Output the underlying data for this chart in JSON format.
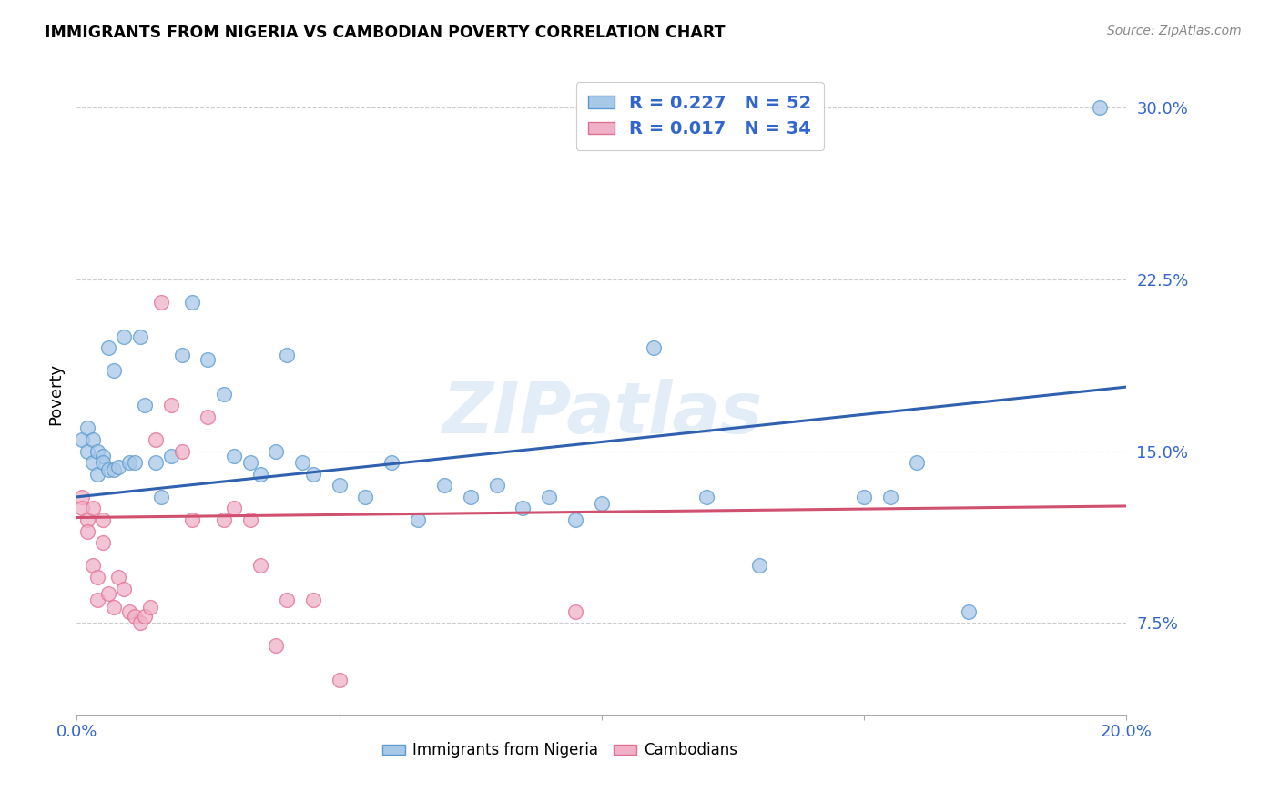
{
  "title": "IMMIGRANTS FROM NIGERIA VS CAMBODIAN POVERTY CORRELATION CHART",
  "source": "Source: ZipAtlas.com",
  "ylabel": "Poverty",
  "yticks": [
    0.075,
    0.15,
    0.225,
    0.3
  ],
  "ytick_labels": [
    "7.5%",
    "15.0%",
    "22.5%",
    "30.0%"
  ],
  "xlim": [
    0.0,
    0.2
  ],
  "ylim": [
    0.035,
    0.315
  ],
  "legend1_label": "R = 0.227   N = 52",
  "legend2_label": "R = 0.017   N = 34",
  "series1_label": "Immigrants from Nigeria",
  "series2_label": "Cambodians",
  "blue_scatter_color": "#a8c8e8",
  "blue_edge_color": "#5a9ad0",
  "pink_scatter_color": "#f0b0c8",
  "pink_edge_color": "#e07090",
  "blue_line_color": "#3060b0",
  "pink_line_color": "#d05070",
  "legend_text_color": "#3366cc",
  "watermark": "ZIPatlas",
  "nigeria_x": [
    0.001,
    0.002,
    0.002,
    0.003,
    0.003,
    0.004,
    0.004,
    0.005,
    0.005,
    0.006,
    0.006,
    0.007,
    0.007,
    0.008,
    0.009,
    0.01,
    0.011,
    0.012,
    0.013,
    0.015,
    0.016,
    0.018,
    0.02,
    0.022,
    0.025,
    0.028,
    0.03,
    0.033,
    0.035,
    0.038,
    0.04,
    0.043,
    0.045,
    0.05,
    0.055,
    0.06,
    0.065,
    0.07,
    0.075,
    0.08,
    0.085,
    0.09,
    0.095,
    0.1,
    0.11,
    0.12,
    0.13,
    0.15,
    0.155,
    0.16,
    0.17,
    0.195
  ],
  "nigeria_y": [
    0.155,
    0.16,
    0.15,
    0.145,
    0.155,
    0.14,
    0.15,
    0.148,
    0.145,
    0.142,
    0.195,
    0.185,
    0.142,
    0.143,
    0.2,
    0.145,
    0.145,
    0.2,
    0.17,
    0.145,
    0.13,
    0.148,
    0.192,
    0.215,
    0.19,
    0.175,
    0.148,
    0.145,
    0.14,
    0.15,
    0.192,
    0.145,
    0.14,
    0.135,
    0.13,
    0.145,
    0.12,
    0.135,
    0.13,
    0.135,
    0.125,
    0.13,
    0.12,
    0.127,
    0.195,
    0.13,
    0.1,
    0.13,
    0.13,
    0.145,
    0.08,
    0.3
  ],
  "cambodian_x": [
    0.001,
    0.001,
    0.002,
    0.002,
    0.003,
    0.003,
    0.004,
    0.004,
    0.005,
    0.005,
    0.006,
    0.007,
    0.008,
    0.009,
    0.01,
    0.011,
    0.012,
    0.013,
    0.014,
    0.015,
    0.016,
    0.018,
    0.02,
    0.022,
    0.025,
    0.028,
    0.03,
    0.033,
    0.035,
    0.038,
    0.04,
    0.045,
    0.05,
    0.095
  ],
  "cambodian_y": [
    0.13,
    0.125,
    0.12,
    0.115,
    0.125,
    0.1,
    0.095,
    0.085,
    0.12,
    0.11,
    0.088,
    0.082,
    0.095,
    0.09,
    0.08,
    0.078,
    0.075,
    0.078,
    0.082,
    0.155,
    0.215,
    0.17,
    0.15,
    0.12,
    0.165,
    0.12,
    0.125,
    0.12,
    0.1,
    0.065,
    0.085,
    0.085,
    0.05,
    0.08
  ],
  "nigeria_line_x": [
    0.0,
    0.2
  ],
  "nigeria_line_y": [
    0.13,
    0.178
  ],
  "cambodian_line_x": [
    0.0,
    0.2
  ],
  "cambodian_line_y": [
    0.121,
    0.126
  ],
  "xtick_positions": [
    0.0,
    0.05,
    0.1,
    0.15,
    0.2
  ],
  "xtick_labels": [
    "0.0%",
    "",
    "",
    "",
    "20.0%"
  ]
}
